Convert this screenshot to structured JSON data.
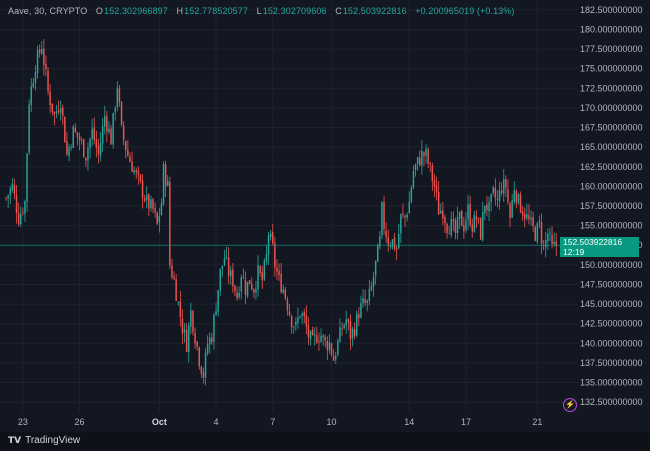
{
  "legend": {
    "symbol": "Aave, 30, CRYPTO",
    "o_label": "O",
    "o_value": "152.302966897",
    "h_label": "H",
    "h_value": "152.778520577",
    "l_label": "L",
    "l_value": "152.302709606",
    "c_label": "C",
    "c_value": "152.503922816",
    "change": "+0.200965019 (+0.13%)"
  },
  "last_price": {
    "price": "152.503922816",
    "countdown": "12:19"
  },
  "brand": {
    "logo": "TV",
    "name": "TradingView"
  },
  "colors": {
    "background": "#131722",
    "up": "#26a69a",
    "down": "#ef5350",
    "grid": "#1e222d",
    "axis_text": "#b2b5be",
    "badge": "#089981"
  },
  "chart_data": {
    "type": "candlestick",
    "title": "Aave, 30, CRYPTO",
    "y_ticks": [
      "182.500000000",
      "180.000000000",
      "177.500000000",
      "175.000000000",
      "172.500000000",
      "170.000000000",
      "167.500000000",
      "165.000000000",
      "162.500000000",
      "160.000000000",
      "157.500000000",
      "155.000000000",
      "152.500000000",
      "150.000000000",
      "147.500000000",
      "145.000000000",
      "142.500000000",
      "140.000000000",
      "137.500000000",
      "135.000000000",
      "132.500000000"
    ],
    "ylim": [
      131.5,
      183.5
    ],
    "x_ticks": [
      "23",
      "26",
      "Oct",
      "4",
      "7",
      "10",
      "14",
      "17",
      "21"
    ],
    "x_tick_index": [
      8,
      35,
      73,
      100,
      127,
      155,
      192,
      219,
      253
    ],
    "grid": true,
    "price_path": [
      [
        0,
        158.5
      ],
      [
        3,
        160
      ],
      [
        6,
        156
      ],
      [
        9,
        158
      ],
      [
        11,
        171
      ],
      [
        14,
        175.5
      ],
      [
        17,
        178
      ],
      [
        20,
        172
      ],
      [
        23,
        169
      ],
      [
        26,
        171
      ],
      [
        29,
        164
      ],
      [
        32,
        167
      ],
      [
        35,
        166
      ],
      [
        38,
        164
      ],
      [
        41,
        167
      ],
      [
        44,
        164
      ],
      [
        47,
        169
      ],
      [
        50,
        166
      ],
      [
        53,
        173
      ],
      [
        55,
        167
      ],
      [
        58,
        164
      ],
      [
        61,
        162
      ],
      [
        64,
        160
      ],
      [
        67,
        158
      ],
      [
        70,
        157
      ],
      [
        72,
        155
      ],
      [
        74,
        158
      ],
      [
        75,
        162
      ],
      [
        77,
        160
      ],
      [
        78,
        150
      ],
      [
        80,
        148
      ],
      [
        82,
        145
      ],
      [
        84,
        142
      ],
      [
        86,
        140
      ],
      [
        88,
        144
      ],
      [
        90,
        141
      ],
      [
        92,
        138
      ],
      [
        94,
        136
      ],
      [
        96,
        140
      ],
      [
        98,
        141
      ],
      [
        100,
        145
      ],
      [
        102,
        149
      ],
      [
        104,
        151
      ],
      [
        106,
        149
      ],
      [
        108,
        148
      ],
      [
        110,
        146
      ],
      [
        112,
        149
      ],
      [
        114,
        147
      ],
      [
        116,
        148
      ],
      [
        118,
        147
      ],
      [
        120,
        149
      ],
      [
        122,
        148
      ],
      [
        124,
        151
      ],
      [
        125,
        154
      ],
      [
        127,
        152
      ],
      [
        128,
        150
      ],
      [
        130,
        148
      ],
      [
        132,
        147
      ],
      [
        134,
        145
      ],
      [
        136,
        143
      ],
      [
        138,
        142
      ],
      [
        140,
        144
      ],
      [
        142,
        143
      ],
      [
        144,
        141
      ],
      [
        146,
        140
      ],
      [
        148,
        141
      ],
      [
        150,
        141
      ],
      [
        152,
        140
      ],
      [
        154,
        140
      ],
      [
        155,
        139
      ],
      [
        156,
        138
      ],
      [
        158,
        140
      ],
      [
        160,
        142
      ],
      [
        162,
        143
      ],
      [
        164,
        141
      ],
      [
        166,
        142
      ],
      [
        168,
        144
      ],
      [
        170,
        145
      ],
      [
        172,
        145
      ],
      [
        174,
        147
      ],
      [
        176,
        150
      ],
      [
        178,
        153
      ],
      [
        179,
        157
      ],
      [
        180,
        155
      ],
      [
        182,
        153
      ],
      [
        184,
        153
      ],
      [
        186,
        152
      ],
      [
        188,
        156
      ],
      [
        190,
        156
      ],
      [
        192,
        158
      ],
      [
        194,
        162
      ],
      [
        196,
        163
      ],
      [
        198,
        164
      ],
      [
        200,
        164
      ],
      [
        202,
        162
      ],
      [
        204,
        160
      ],
      [
        206,
        157
      ],
      [
        208,
        157
      ],
      [
        210,
        155
      ],
      [
        212,
        155
      ],
      [
        214,
        154
      ],
      [
        216,
        156
      ],
      [
        218,
        155
      ],
      [
        220,
        157
      ],
      [
        222,
        155
      ],
      [
        224,
        156
      ],
      [
        226,
        154
      ],
      [
        228,
        158
      ],
      [
        230,
        157
      ],
      [
        232,
        159
      ],
      [
        234,
        158
      ],
      [
        236,
        160
      ],
      [
        238,
        160
      ],
      [
        240,
        156
      ],
      [
        242,
        160
      ],
      [
        244,
        158
      ],
      [
        246,
        157
      ],
      [
        248,
        156
      ],
      [
        250,
        155
      ],
      [
        252,
        154
      ],
      [
        254,
        155
      ],
      [
        256,
        152
      ],
      [
        258,
        154
      ],
      [
        260,
        152
      ],
      [
        262,
        152.5
      ]
    ]
  }
}
